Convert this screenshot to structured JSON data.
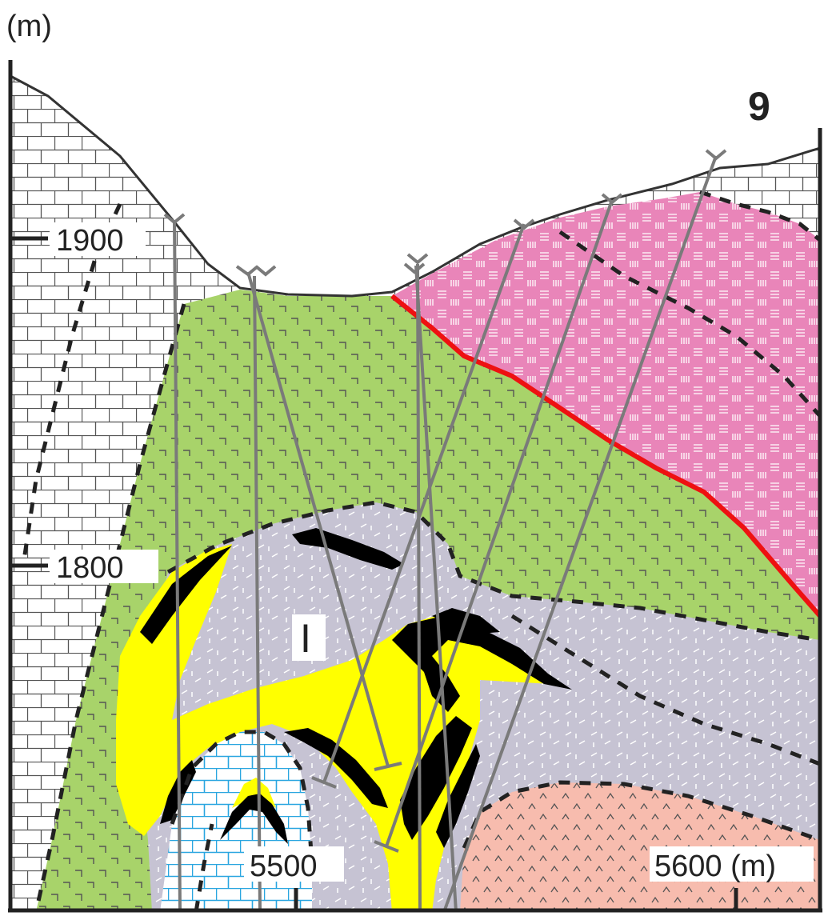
{
  "figure": {
    "unit_label": "(m)",
    "panel_label": "9",
    "elevation_ticks": [
      "1900",
      "1800"
    ],
    "distance_ticks": [
      "5500",
      "5600 (m)"
    ],
    "orebody_label": "I"
  },
  "colors": {
    "limestone_host": "#ffffff",
    "limestone_lines": "#555555",
    "green_unit": "#a8d36a",
    "pink_unit": "#e985b9",
    "grey_unit": "#c6c3d3",
    "yellow_orebody": "#ffff00",
    "black_orebody": "#000000",
    "salmon_unit": "#f7bcae",
    "blue_limestone": "#2aa6e0",
    "fault": "#ee1111",
    "drillhole": "#7a7a7a"
  }
}
